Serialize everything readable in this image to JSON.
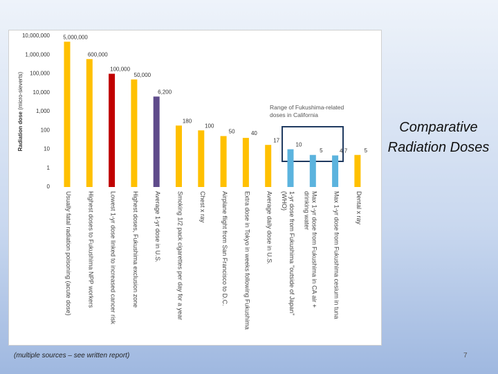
{
  "title": "Comparative Radiation Doses",
  "footer": "(multiple sources – see written report)",
  "page_number": "7",
  "chart_data": {
    "type": "bar",
    "ylabel": "Radiation dose",
    "ylabel_unit": "(micro-sieverts)",
    "yscale": "symlog",
    "ylim": [
      0,
      10000000
    ],
    "yticks": [
      0,
      1,
      10,
      100,
      {
        "value": 1000,
        "label": "1,000"
      },
      {
        "value": 10000,
        "label": "10,000"
      },
      {
        "value": 100000,
        "label": "100,000"
      },
      {
        "value": 1000000,
        "label": "1,000,000"
      },
      {
        "value": 10000000,
        "label": "10,000,000"
      }
    ],
    "categories": [
      "Usually fatal radiation poisoning (acute dose)",
      "Highest doses to Fukushima NPP workers",
      "Lowest 1-yr dose linked to increased cancer risk",
      "Highest doses, Fukushima exclusion zone",
      "Average 1-yr dose in U.S.",
      "Smoking 1/2 pack cigarettes per day for a year",
      "Chest x ray",
      "Airplane flight from San Francisco to D.C.",
      "Extra dose in Tokyo in weeks following Fukushima",
      "Average daily dose in U.S.",
      "1-yr dose from Fukushima \"outside of Japan\" (WHO)",
      "Max 1-yr dose from Fukushima in CA air + drinking water",
      "Max 1-yr dose from Fukushima cesium in tuna",
      "Dental x ray"
    ],
    "values": [
      5000000,
      600000,
      100000,
      50000,
      6200,
      180,
      100,
      50,
      40,
      17,
      10,
      5,
      4.7,
      5
    ],
    "value_labels": [
      "5,000,000",
      "600,000",
      "100,000",
      "50,000",
      "6,200",
      "180",
      "100",
      "50",
      "40",
      "17",
      "10",
      "5",
      "4.7",
      "5"
    ],
    "colors": [
      "#FFC000",
      "#FFC000",
      "#C00000",
      "#FFC000",
      "#5F4B8B",
      "#FFC000",
      "#FFC000",
      "#FFC000",
      "#FFC000",
      "#FFC000",
      "#5BB3DE",
      "#5BB3DE",
      "#5BB3DE",
      "#FFC000"
    ],
    "annotation": "Range of Fukushima-related doses in California"
  }
}
